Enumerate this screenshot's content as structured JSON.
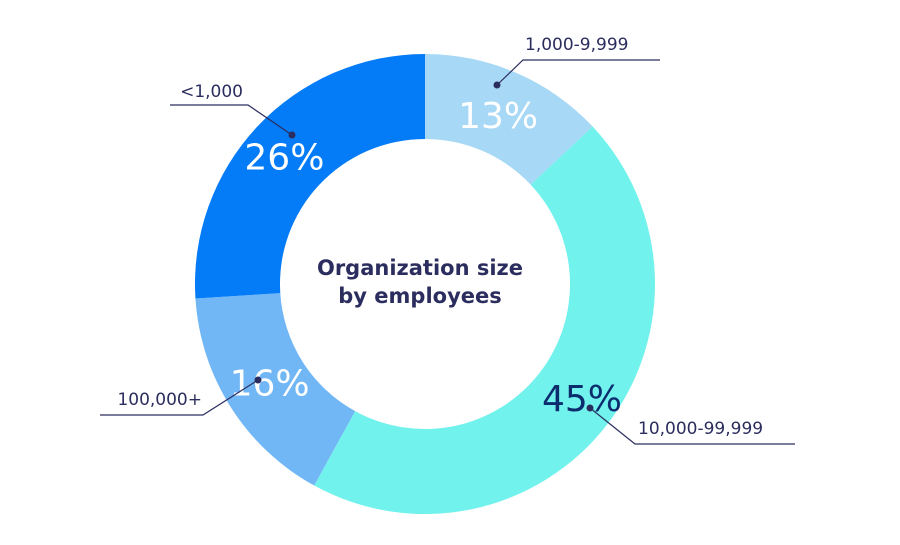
{
  "chart_data": {
    "type": "pie",
    "title": "Organization size by employees",
    "title_lines": [
      "Organization size",
      "by employees"
    ],
    "donut": true,
    "categories": [
      "1,000-9,999",
      "10,000-99,999",
      "100,000+",
      "<1,000"
    ],
    "values": [
      13,
      45,
      16,
      26
    ],
    "value_labels": [
      "13%",
      "45%",
      "16%",
      "26%"
    ],
    "colors": [
      "#a7d8f5",
      "#72f2ec",
      "#72b7f5",
      "#047bf7"
    ],
    "label_colors": [
      "#ffffff",
      "#0b2d6e",
      "#ffffff",
      "#ffffff"
    ]
  }
}
